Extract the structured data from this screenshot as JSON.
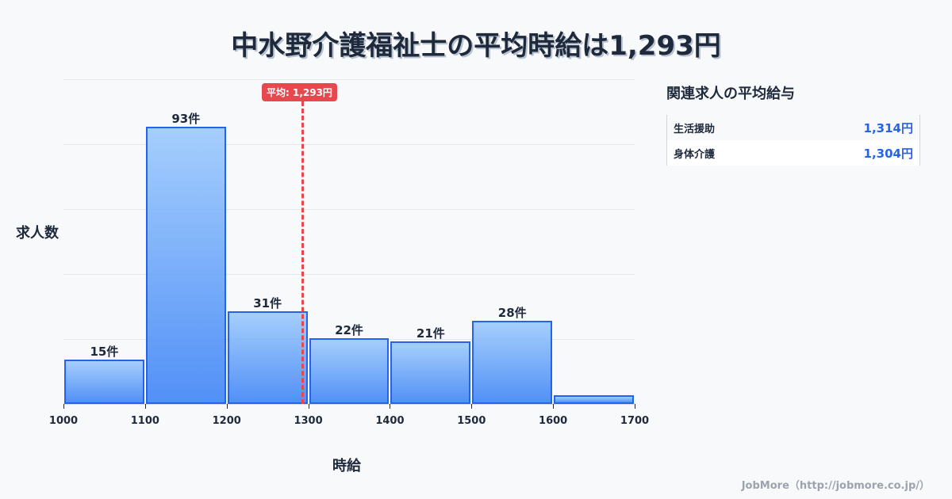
{
  "title": "中水野介護福祉士の平均時給は1,293円",
  "chart_data": {
    "type": "bar",
    "subtype": "histogram",
    "title": "中水野介護福祉士の平均時給は1,293円",
    "xlabel": "時給",
    "ylabel": "求人数",
    "bin_edges": [
      1000,
      1100,
      1200,
      1300,
      1400,
      1500,
      1600,
      1700
    ],
    "categories": [
      "1000-1100",
      "1100-1200",
      "1200-1300",
      "1300-1400",
      "1400-1500",
      "1500-1600",
      "1600-1700"
    ],
    "values": [
      15,
      93,
      31,
      22,
      21,
      28,
      3
    ],
    "value_labels": [
      "15件",
      "93件",
      "31件",
      "22件",
      "21件",
      "28件",
      ""
    ],
    "x_tick_labels": [
      "1000",
      "1100",
      "1200",
      "1300",
      "1400",
      "1500",
      "1600",
      "1700"
    ],
    "xlim": [
      1000,
      1700
    ],
    "ylim": [
      0,
      109
    ],
    "grid": true,
    "mean": 1293,
    "mean_label": "平均: 1,293円",
    "colors": {
      "bar_fill_top": "#a5cdfb",
      "bar_fill_bottom": "#4f8cf5",
      "bar_border": "#2563eb",
      "mean_line": "#e5484d"
    }
  },
  "sidebar": {
    "title": "関連求人の平均給与",
    "rows": [
      {
        "name": "生活援助",
        "value": "1,314円"
      },
      {
        "name": "身体介護",
        "value": "1,304円"
      }
    ]
  },
  "footer": "JobMore（http://jobmore.co.jp/）"
}
